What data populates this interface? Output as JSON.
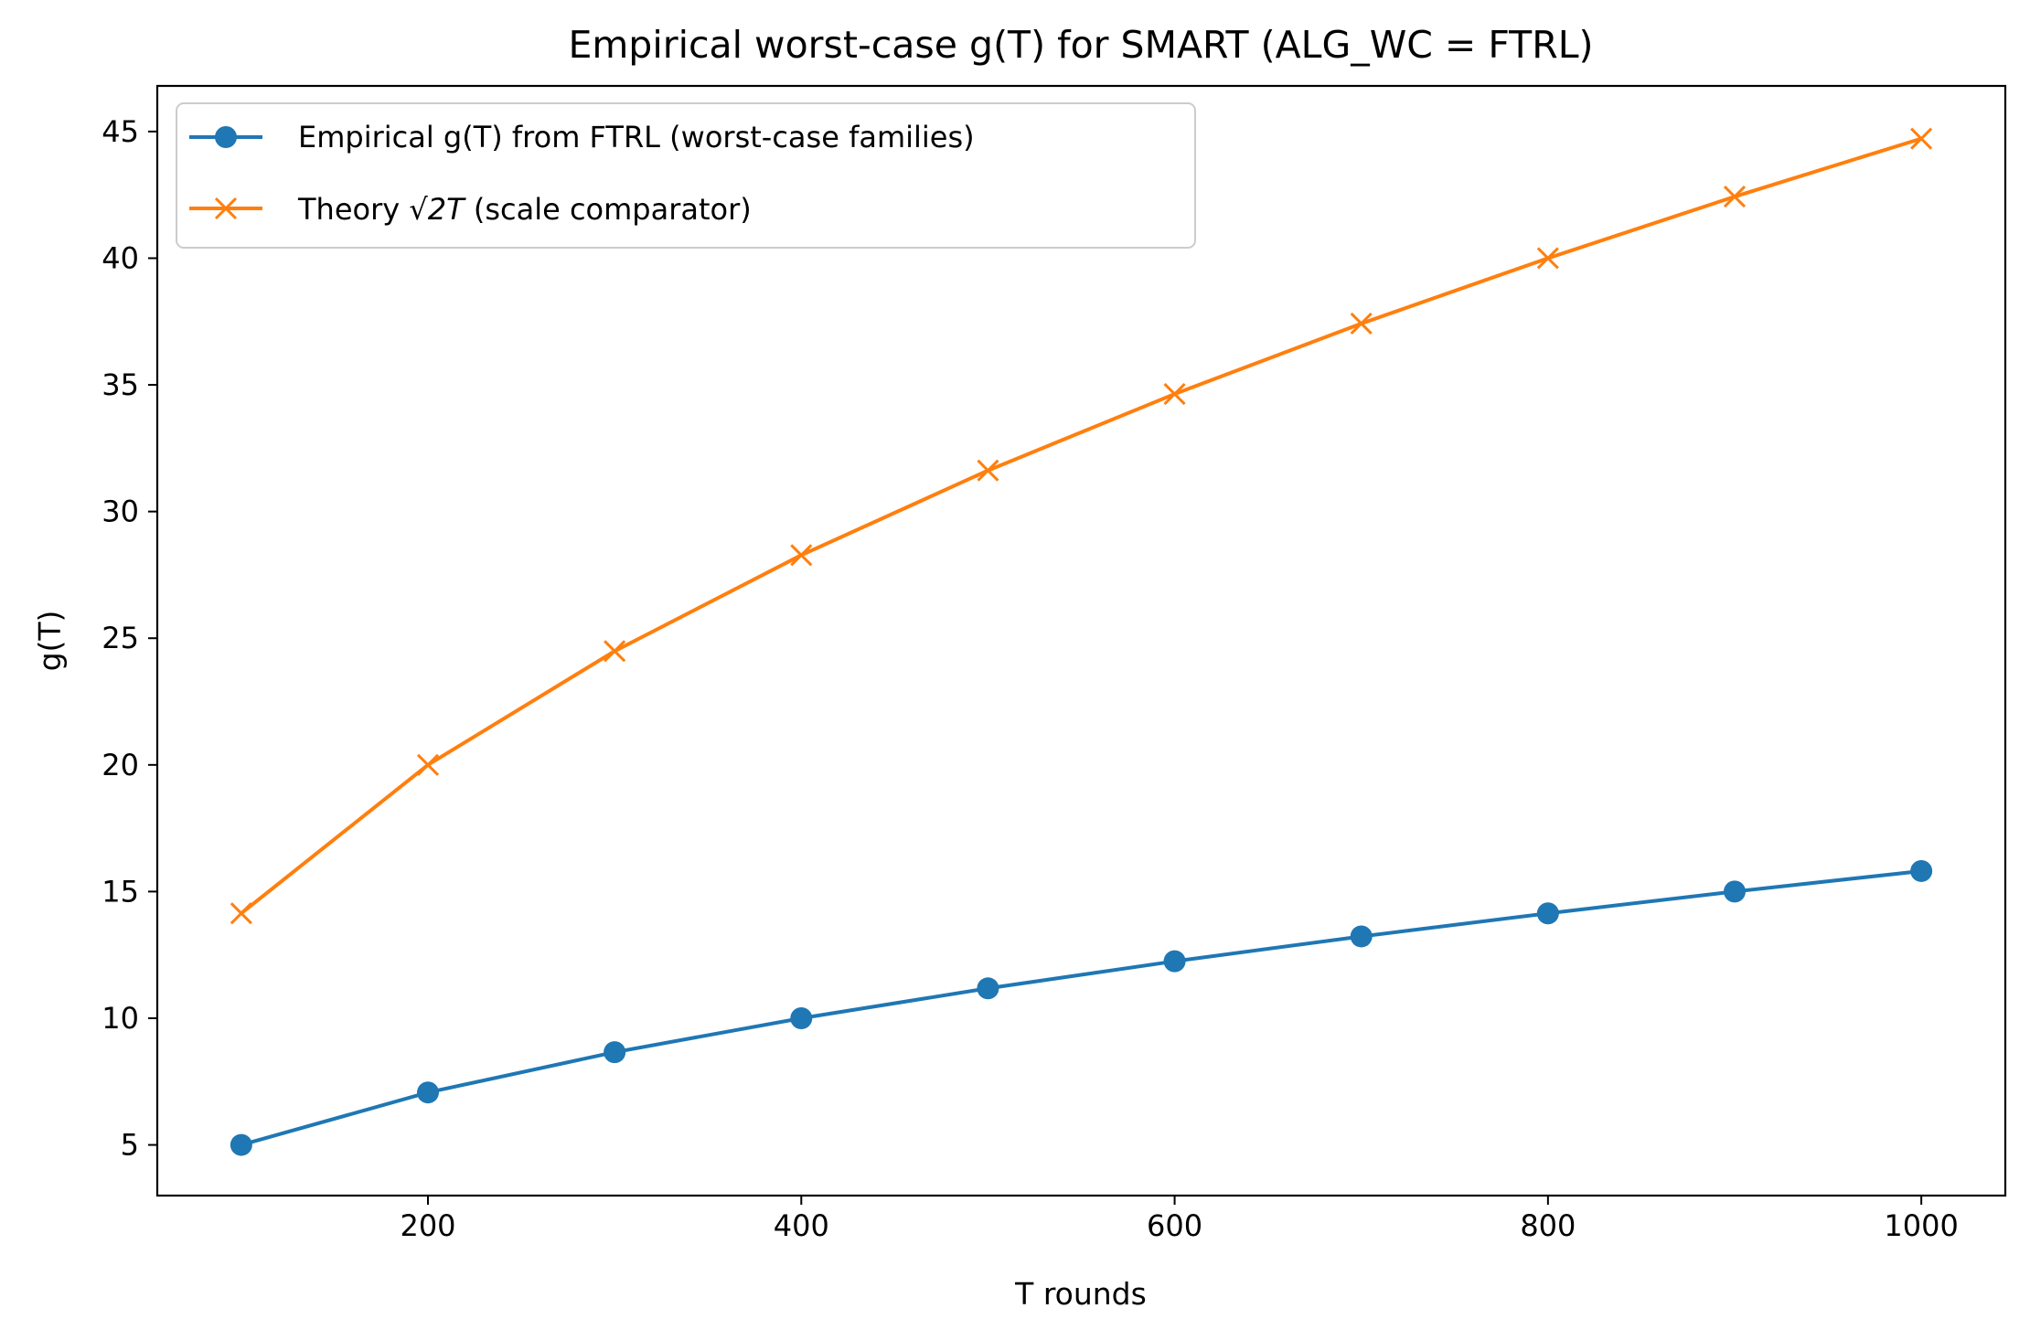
{
  "chart_data": {
    "type": "line",
    "title": "Empirical worst-case g(T) for SMART (ALG_WC = FTRL)",
    "xlabel": "T rounds",
    "ylabel": "g(T)",
    "x": [
      100,
      200,
      300,
      400,
      500,
      600,
      700,
      800,
      900,
      1000
    ],
    "xlim": [
      55,
      1045
    ],
    "ylim": [
      3.0,
      46.8
    ],
    "xticks": [
      200,
      400,
      600,
      800,
      1000
    ],
    "yticks": [
      5,
      10,
      15,
      20,
      25,
      30,
      35,
      40,
      45
    ],
    "grid": false,
    "legend_position": "upper-left",
    "series": [
      {
        "name": "Empirical g(T) from FTRL (worst-case families)",
        "color": "#1f77b4",
        "marker": "circle",
        "values": [
          5.0,
          7.07,
          8.66,
          10.0,
          11.18,
          12.25,
          13.23,
          14.14,
          15.0,
          15.81
        ]
      },
      {
        "name_prefix": "Theory ",
        "name_math": "√2T",
        "name_suffix": " (scale comparator)",
        "color": "#ff7f0e",
        "marker": "x",
        "values": [
          14.14,
          20.0,
          24.49,
          28.28,
          31.62,
          34.64,
          37.42,
          40.0,
          42.43,
          44.72
        ]
      }
    ]
  }
}
